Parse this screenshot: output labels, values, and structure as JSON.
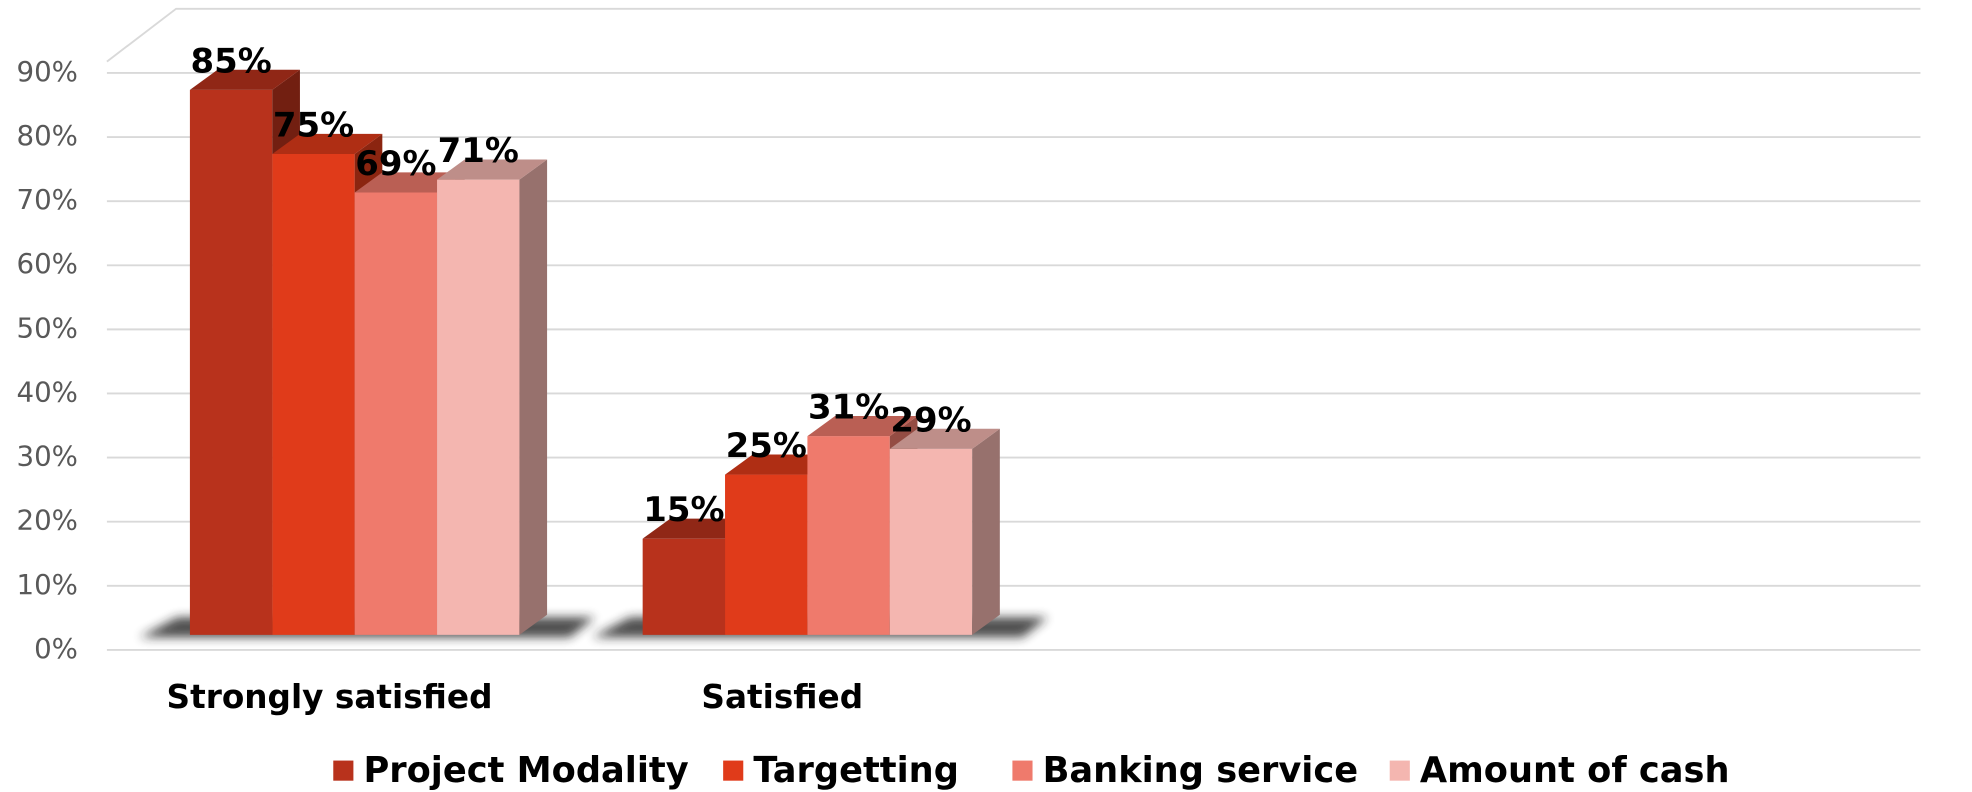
{
  "chart_data": {
    "type": "bar3d",
    "categories": [
      "Strongly satisfied",
      "Satisfied"
    ],
    "series": [
      {
        "name": "Project Modality",
        "color": "#b8321c",
        "values": [
          85,
          15
        ],
        "value_labels": [
          "85%",
          "15%"
        ]
      },
      {
        "name": "Targetting",
        "color": "#e03b1a",
        "values": [
          75,
          25
        ],
        "value_labels": [
          "75%",
          "25%"
        ]
      },
      {
        "name": "Banking service",
        "color": "#ef7a6c",
        "values": [
          69,
          31
        ],
        "value_labels": [
          "69%",
          "31%"
        ]
      },
      {
        "name": "Amount of cash",
        "color": "#f4b6b0",
        "values": [
          71,
          29
        ],
        "value_labels": [
          "71%",
          "29%"
        ]
      }
    ],
    "ylim": [
      0,
      100
    ],
    "yticks": [
      {
        "value": 0,
        "label": "0%"
      },
      {
        "value": 10,
        "label": "10%"
      },
      {
        "value": 20,
        "label": "20%"
      },
      {
        "value": 30,
        "label": "30%"
      },
      {
        "value": 40,
        "label": "40%"
      },
      {
        "value": 50,
        "label": "50%"
      },
      {
        "value": 60,
        "label": "60%"
      },
      {
        "value": 70,
        "label": "70%"
      },
      {
        "value": 80,
        "label": "80%"
      },
      {
        "value": 90,
        "label": "90%"
      }
    ],
    "grid": true,
    "legend": "bottom"
  }
}
